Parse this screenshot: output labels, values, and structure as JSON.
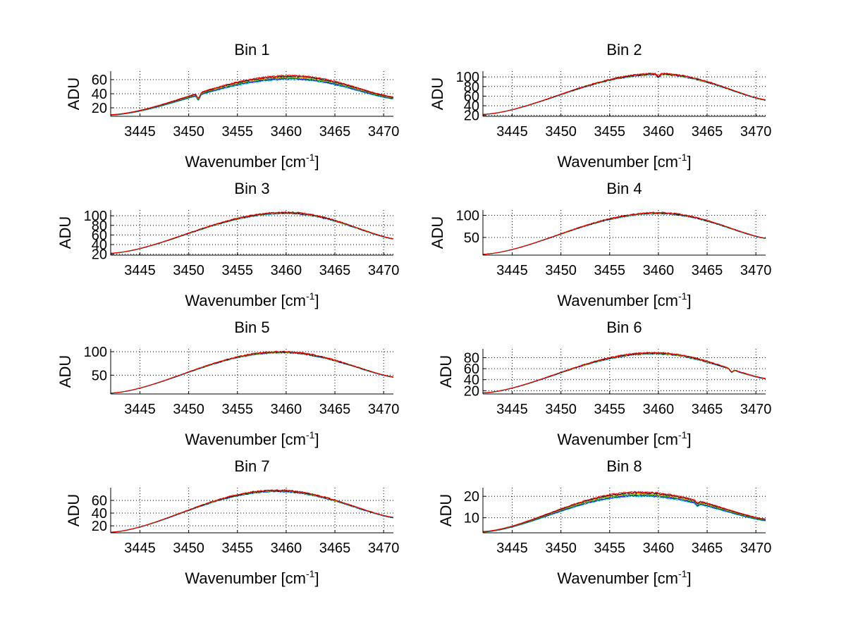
{
  "figure": {
    "background": "#ffffff",
    "series_colors": [
      "#00bfbf",
      "#0000ff",
      "#00a000",
      "#ff8c00",
      "#000000",
      "#ff0000"
    ]
  },
  "chart_data": [
    {
      "type": "line",
      "title": "Bin 1",
      "xlabel": "Wavenumber [cm",
      "xlabel_sup": "-1",
      "xlabel_end": "]",
      "ylabel": "ADU",
      "xlim": [
        3442,
        3471
      ],
      "ylim": [
        8,
        72
      ],
      "xticks": [
        3445,
        3450,
        3455,
        3460,
        3465,
        3470
      ],
      "yticks": [
        20,
        40,
        60
      ],
      "profile": {
        "start": 10,
        "peak": 63,
        "peak_x": 3460.5,
        "end": 34,
        "spread": 2.5
      },
      "dips": [
        {
          "x": 3451,
          "depth": 7
        }
      ],
      "grid": true
    },
    {
      "type": "line",
      "title": "Bin 2",
      "xlabel": "Wavenumber [cm",
      "xlabel_sup": "-1",
      "xlabel_end": "]",
      "ylabel": "ADU",
      "xlim": [
        3442,
        3471
      ],
      "ylim": [
        18,
        112
      ],
      "xticks": [
        3445,
        3450,
        3455,
        3460,
        3465,
        3470
      ],
      "yticks": [
        20,
        40,
        60,
        80,
        100
      ],
      "profile": {
        "start": 22,
        "peak": 106,
        "peak_x": 3460,
        "end": 52,
        "spread": 1
      },
      "dips": [
        {
          "x": 3460,
          "depth": 6
        }
      ],
      "grid": true
    },
    {
      "type": "line",
      "title": "Bin 3",
      "xlabel": "Wavenumber [cm",
      "xlabel_sup": "-1",
      "xlabel_end": "]",
      "ylabel": "ADU",
      "xlim": [
        3442,
        3471
      ],
      "ylim": [
        18,
        112
      ],
      "xticks": [
        3445,
        3450,
        3455,
        3460,
        3465,
        3470
      ],
      "yticks": [
        20,
        40,
        60,
        80,
        100
      ],
      "profile": {
        "start": 22,
        "peak": 106,
        "peak_x": 3460,
        "end": 52,
        "spread": 1
      },
      "dips": [],
      "grid": true
    },
    {
      "type": "line",
      "title": "Bin 4",
      "xlabel": "Wavenumber [cm",
      "xlabel_sup": "-1",
      "xlabel_end": "]",
      "ylabel": "ADU",
      "xlim": [
        3442,
        3471
      ],
      "ylim": [
        10,
        112
      ],
      "xticks": [
        3445,
        3450,
        3455,
        3460,
        3465,
        3470
      ],
      "yticks": [
        50,
        100
      ],
      "profile": {
        "start": 12,
        "peak": 105,
        "peak_x": 3460,
        "end": 48,
        "spread": 1
      },
      "dips": [],
      "grid": true
    },
    {
      "type": "line",
      "title": "Bin 5",
      "xlabel": "Wavenumber [cm",
      "xlabel_sup": "-1",
      "xlabel_end": "]",
      "ylabel": "ADU",
      "xlim": [
        3442,
        3471
      ],
      "ylim": [
        10,
        106
      ],
      "xticks": [
        3445,
        3450,
        3455,
        3460,
        3465,
        3470
      ],
      "yticks": [
        50,
        100
      ],
      "profile": {
        "start": 12,
        "peak": 99,
        "peak_x": 3459.5,
        "end": 46,
        "spread": 1
      },
      "dips": [],
      "grid": true
    },
    {
      "type": "line",
      "title": "Bin 6",
      "xlabel": "Wavenumber [cm",
      "xlabel_sup": "-1",
      "xlabel_end": "]",
      "ylabel": "ADU",
      "xlim": [
        3442,
        3471
      ],
      "ylim": [
        14,
        96
      ],
      "xticks": [
        3445,
        3450,
        3455,
        3460,
        3465,
        3470
      ],
      "yticks": [
        20,
        40,
        60,
        80
      ],
      "profile": {
        "start": 16,
        "peak": 88,
        "peak_x": 3459.5,
        "end": 42,
        "spread": 1
      },
      "dips": [
        {
          "x": 3467.5,
          "depth": 5
        }
      ],
      "grid": true
    },
    {
      "type": "line",
      "title": "Bin 7",
      "xlabel": "Wavenumber [cm",
      "xlabel_sup": "-1",
      "xlabel_end": "]",
      "ylabel": "ADU",
      "xlim": [
        3442,
        3471
      ],
      "ylim": [
        9,
        80
      ],
      "xticks": [
        3445,
        3450,
        3455,
        3460,
        3465,
        3470
      ],
      "yticks": [
        20,
        40,
        60
      ],
      "profile": {
        "start": 10,
        "peak": 75,
        "peak_x": 3459,
        "end": 33,
        "spread": 1
      },
      "dips": [],
      "grid": true
    },
    {
      "type": "line",
      "title": "Bin 8",
      "xlabel": "Wavenumber [cm",
      "xlabel_sup": "-1",
      "xlabel_end": "]",
      "ylabel": "ADU",
      "xlim": [
        3442,
        3471
      ],
      "ylim": [
        3,
        24
      ],
      "xticks": [
        3445,
        3450,
        3455,
        3460,
        3465,
        3470
      ],
      "yticks": [
        10,
        20
      ],
      "profile": {
        "start": 3.5,
        "peak": 21,
        "peak_x": 3458,
        "end": 9,
        "spread": 0.9
      },
      "dips": [
        {
          "x": 3464,
          "depth": 1
        }
      ],
      "grid": true
    }
  ]
}
